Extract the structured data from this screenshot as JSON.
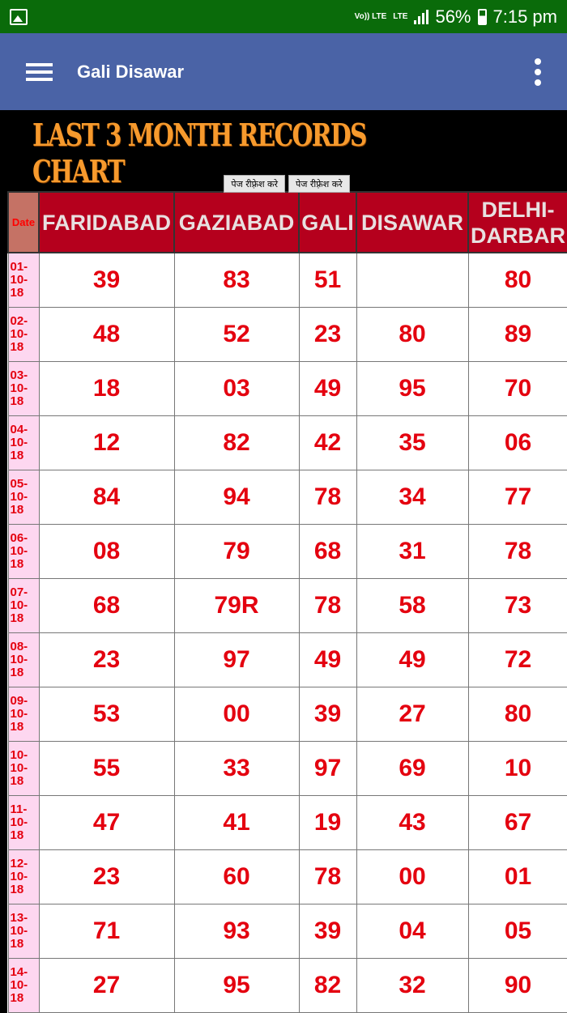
{
  "status_bar": {
    "network": "Vo)) LTE",
    "lte": "LTE",
    "battery": "56%",
    "time": "7:15 pm"
  },
  "app_bar": {
    "title": "Gali Disawar"
  },
  "banner": {
    "text": "LAST 3 MONTH RECORDS CHART"
  },
  "buttons": [
    "पेज रीफ़्रेश करे",
    "पेज रीफ़्रेश करे"
  ],
  "table": {
    "headers": [
      "Date",
      "FARIDABAD",
      "GAZIABAD",
      "GALI",
      "DISAWAR",
      "DELHI-DARBAR"
    ],
    "rows": [
      {
        "date": "01-10-18",
        "values": [
          "39",
          "83",
          "51",
          "",
          "80"
        ]
      },
      {
        "date": "02-10-18",
        "values": [
          "48",
          "52",
          "23",
          "80",
          "89"
        ]
      },
      {
        "date": "03-10-18",
        "values": [
          "18",
          "03",
          "49",
          "95",
          "70"
        ]
      },
      {
        "date": "04-10-18",
        "values": [
          "12",
          "82",
          "42",
          "35",
          "06"
        ]
      },
      {
        "date": "05-10-18",
        "values": [
          "84",
          "94",
          "78",
          "34",
          "77"
        ]
      },
      {
        "date": "06-10-18",
        "values": [
          "08",
          "79",
          "68",
          "31",
          "78"
        ]
      },
      {
        "date": "07-10-18",
        "values": [
          "68",
          "79R",
          "78",
          "58",
          "73"
        ]
      },
      {
        "date": "08-10-18",
        "values": [
          "23",
          "97",
          "49",
          "49",
          "72"
        ]
      },
      {
        "date": "09-10-18",
        "values": [
          "53",
          "00",
          "39",
          "27",
          "80"
        ]
      },
      {
        "date": "10-10-18",
        "values": [
          "55",
          "33",
          "97",
          "69",
          "10"
        ]
      },
      {
        "date": "11-10-18",
        "values": [
          "47",
          "41",
          "19",
          "43",
          "67"
        ]
      },
      {
        "date": "12-10-18",
        "values": [
          "23",
          "60",
          "78",
          "00",
          "01"
        ]
      },
      {
        "date": "13-10-18",
        "values": [
          "71",
          "93",
          "39",
          "04",
          "05"
        ]
      },
      {
        "date": "14-10-18",
        "values": [
          "27",
          "95",
          "82",
          "32",
          "90"
        ]
      }
    ]
  }
}
